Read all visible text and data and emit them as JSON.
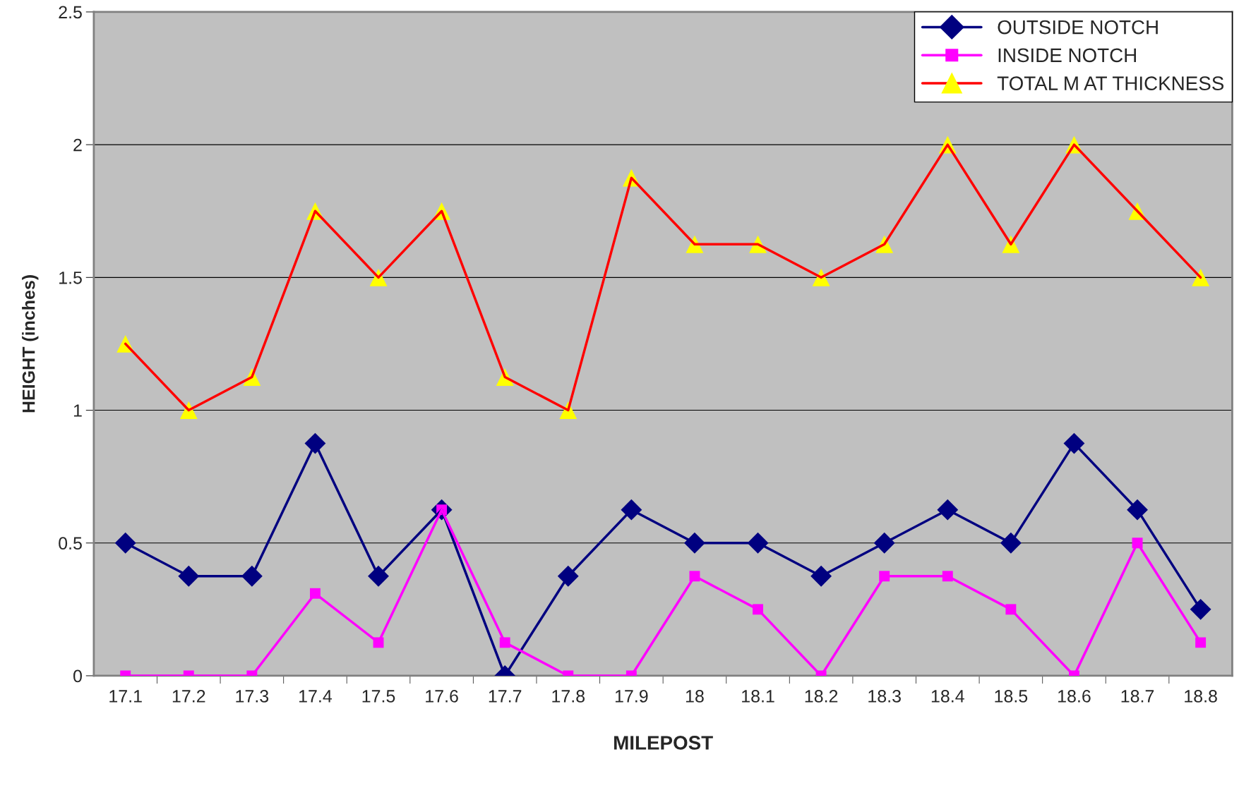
{
  "chart_data": {
    "type": "line",
    "xlabel": "MILEPOST",
    "ylabel": "HEIGHT (inches)",
    "categories": [
      "17.1",
      "17.2",
      "17.3",
      "17.4",
      "17.5",
      "17.6",
      "17.7",
      "17.8",
      "17.9",
      "18",
      "18.1",
      "18.2",
      "18.3",
      "18.4",
      "18.5",
      "18.6",
      "18.7",
      "18.8"
    ],
    "series": [
      {
        "name": "OUTSIDE NOTCH",
        "color": "#000080",
        "marker": "diamond",
        "values": [
          0.5,
          0.375,
          0.375,
          0.875,
          0.375,
          0.625,
          0,
          0.375,
          0.625,
          0.5,
          0.5,
          0.375,
          0.5,
          0.625,
          0.5,
          0.875,
          0.625,
          0.25
        ]
      },
      {
        "name": "INSIDE NOTCH",
        "color": "#ff00ff",
        "marker": "square",
        "values": [
          0,
          0,
          0,
          0.31,
          0.125,
          0.625,
          0.125,
          0,
          0,
          0.375,
          0.25,
          0,
          0.375,
          0.375,
          0.25,
          0,
          0.5,
          0.125
        ]
      },
      {
        "name": "TOTAL M AT THICKNESS",
        "color": "#ff0000",
        "marker": "triangle",
        "values": [
          1.25,
          1.0,
          1.125,
          1.75,
          1.5,
          1.75,
          1.125,
          1.0,
          1.875,
          1.625,
          1.625,
          1.5,
          1.625,
          2.0,
          1.625,
          2.0,
          1.75,
          1.5
        ]
      }
    ],
    "ylim": [
      0,
      2.5
    ],
    "yticks": [
      0,
      0.5,
      1,
      1.5,
      2,
      2.5
    ],
    "grid": "y",
    "legend": "top right",
    "line_style": "solid"
  }
}
